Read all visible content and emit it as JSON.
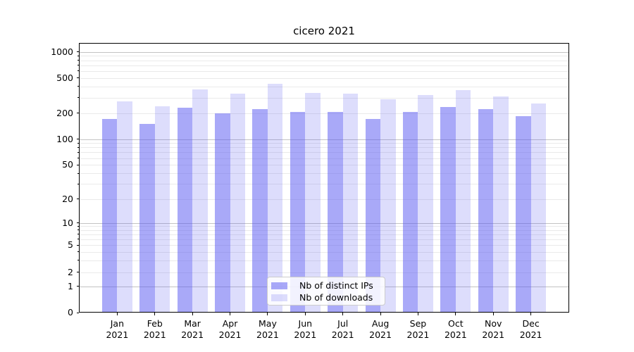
{
  "chart_data": {
    "type": "bar",
    "title": "cicero 2021",
    "months": [
      "Jan",
      "Feb",
      "Mar",
      "Apr",
      "May",
      "Jun",
      "Jul",
      "Aug",
      "Sep",
      "Oct",
      "Nov",
      "Dec"
    ],
    "year_label": "2021",
    "series": [
      {
        "name": "Nb of distinct IPs",
        "color": "rgba(83,83,241,0.5)",
        "values": [
          172,
          151,
          231,
          197,
          221,
          204,
          204,
          170,
          205,
          233,
          223,
          185
        ]
      },
      {
        "name": "Nb of downloads",
        "color": "rgba(83,83,241,0.2)",
        "values": [
          269,
          238,
          368,
          334,
          427,
          336,
          330,
          286,
          322,
          361,
          306,
          255
        ]
      }
    ],
    "y_ticks": [
      0,
      1,
      2,
      5,
      10,
      20,
      50,
      100,
      200,
      500,
      1000
    ],
    "y_scale": "symlog",
    "ylim": [
      0,
      1000
    ],
    "xlabel": "",
    "ylabel": "",
    "grid": "both",
    "legend_position": "lower center"
  },
  "style": {
    "grid_major_color": "#c3c3c3",
    "grid_minor_color": "#eaeaea",
    "spine_color": "#000000",
    "text_color": "#000000",
    "legend_border_color": "#cccccc",
    "legend_background": "rgba(255,255,255,0.85)"
  }
}
